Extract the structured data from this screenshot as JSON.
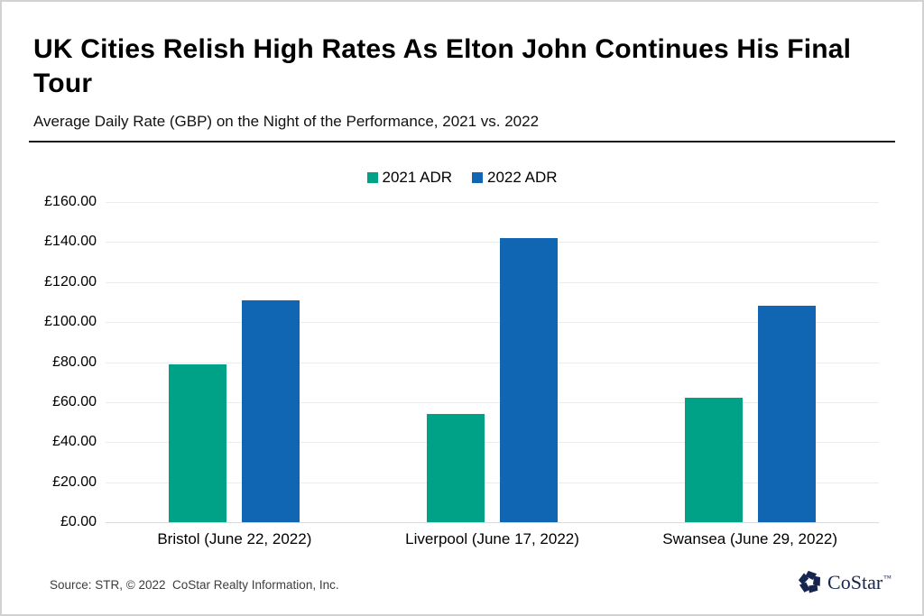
{
  "header": {
    "title": "UK Cities Relish High Rates As Elton John Continues His Final Tour",
    "subtitle": "Average Daily Rate (GBP) on the Night of the Performance, 2021 vs. 2022"
  },
  "legend": [
    {
      "label": "2021 ADR",
      "color": "#00A287"
    },
    {
      "label": "2022 ADR",
      "color": "#1066B2"
    }
  ],
  "chart_data": {
    "type": "bar",
    "title": "UK Cities Relish High Rates As Elton John Continues His Final Tour",
    "subtitle": "Average Daily Rate (GBP) on the Night of the Performance, 2021 vs. 2022",
    "categories": [
      "Bristol (June 22, 2022)",
      "Liverpool (June 17, 2022)",
      "Swansea (June 29, 2022)"
    ],
    "series": [
      {
        "name": "2021 ADR",
        "color": "#00A287",
        "values": [
          79,
          54,
          62
        ]
      },
      {
        "name": "2022 ADR",
        "color": "#1066B2",
        "values": [
          111,
          142,
          108
        ]
      }
    ],
    "ylim": [
      0,
      160
    ],
    "ytick_step": 20,
    "yticks": [
      "£160.00",
      "£140.00",
      "£120.00",
      "£100.00",
      "£80.00",
      "£60.00",
      "£40.00",
      "£20.00",
      "£0.00"
    ],
    "grid": true,
    "legend_position": "top-center",
    "currency": "GBP"
  },
  "footer": {
    "source": "Source: STR, © 2022  CoStar Realty Information, Inc.",
    "logo_text": "CoStar",
    "logo_tm": "™",
    "logo_color": "#16264e"
  }
}
